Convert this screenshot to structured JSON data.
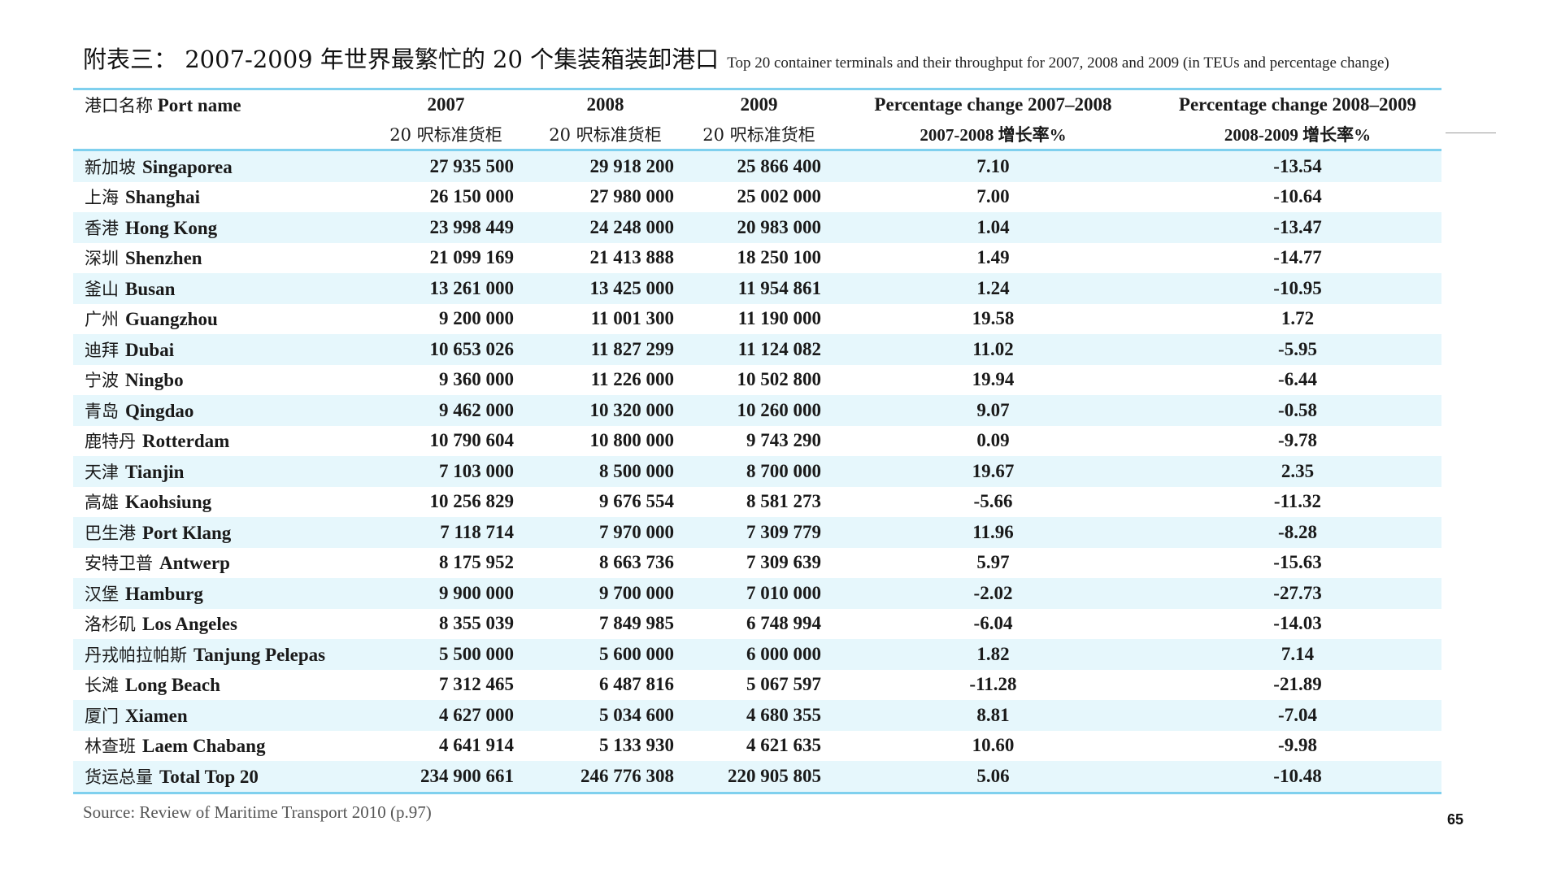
{
  "title": {
    "zh": "附表三：  2007-2009 年世界最繁忙的 20 个集装箱装卸港口",
    "en": "Top 20 container terminals and their throughput for 2007, 2008 and 2009 (in TEUs and percentage change)"
  },
  "table": {
    "headers": {
      "name_zh": "港口名称",
      "name_en": "Port name",
      "y2007": "2007",
      "y2008": "2008",
      "y2009": "2009",
      "pct1_en": "Percentage change 2007–2008",
      "pct2_en": "Percentage change 2008–2009",
      "unit_zh": "20 呎标准货柜",
      "pct1_zh": "2007-2008 增长率%",
      "pct2_zh": "2008-2009 增长率%"
    },
    "rows": [
      {
        "zh": "新加坡",
        "en": "Singaporea",
        "v2007": "27 935 500",
        "v2008": "29 918 200",
        "v2009": "25 866 400",
        "p1": "7.10",
        "p2": "-13.54"
      },
      {
        "zh": "上海",
        "en": "Shanghai",
        "v2007": "26 150 000",
        "v2008": "27 980 000",
        "v2009": "25 002 000",
        "p1": "7.00",
        "p2": "-10.64"
      },
      {
        "zh": "香港",
        "en": "Hong Kong",
        "v2007": "23 998 449",
        "v2008": "24 248 000",
        "v2009": "20 983 000",
        "p1": "1.04",
        "p2": "-13.47"
      },
      {
        "zh": "深圳",
        "en": "Shenzhen",
        "v2007": "21 099 169",
        "v2008": "21 413 888",
        "v2009": "18 250 100",
        "p1": "1.49",
        "p2": "-14.77"
      },
      {
        "zh": "釜山",
        "en": "Busan",
        "v2007": "13 261 000",
        "v2008": "13 425 000",
        "v2009": "11 954 861",
        "p1": "1.24",
        "p2": "-10.95"
      },
      {
        "zh": "广州",
        "en": "Guangzhou",
        "v2007": "9 200 000",
        "v2008": "11 001 300",
        "v2009": "11 190 000",
        "p1": "19.58",
        "p2": "1.72"
      },
      {
        "zh": "迪拜",
        "en": "Dubai",
        "v2007": "10 653 026",
        "v2008": "11 827 299",
        "v2009": "11 124 082",
        "p1": "11.02",
        "p2": "-5.95"
      },
      {
        "zh": "宁波",
        "en": "Ningbo",
        "v2007": "9 360 000",
        "v2008": "11 226 000",
        "v2009": "10 502 800",
        "p1": "19.94",
        "p2": "-6.44"
      },
      {
        "zh": "青岛",
        "en": "Qingdao",
        "v2007": "9 462 000",
        "v2008": "10 320 000",
        "v2009": "10 260 000",
        "p1": "9.07",
        "p2": "-0.58"
      },
      {
        "zh": "鹿特丹",
        "en": "Rotterdam",
        "v2007": "10 790 604",
        "v2008": "10 800 000",
        "v2009": "9 743 290",
        "p1": "0.09",
        "p2": "-9.78"
      },
      {
        "zh": "天津",
        "en": "Tianjin",
        "v2007": "7 103 000",
        "v2008": "8 500 000",
        "v2009": "8 700 000",
        "p1": "19.67",
        "p2": "2.35"
      },
      {
        "zh": "高雄",
        "en": "Kaohsiung",
        "v2007": "10 256 829",
        "v2008": "9 676 554",
        "v2009": "8 581 273",
        "p1": "-5.66",
        "p2": "-11.32"
      },
      {
        "zh": "巴生港",
        "en": "Port Klang",
        "v2007": "7 118 714",
        "v2008": "7 970 000",
        "v2009": "7 309 779",
        "p1": "11.96",
        "p2": "-8.28"
      },
      {
        "zh": "安特卫普",
        "en": "Antwerp",
        "v2007": "8 175 952",
        "v2008": "8 663 736",
        "v2009": "7 309 639",
        "p1": "5.97",
        "p2": "-15.63"
      },
      {
        "zh": "汉堡",
        "en": "Hamburg",
        "v2007": "9 900 000",
        "v2008": "9 700 000",
        "v2009": "7 010 000",
        "p1": "-2.02",
        "p2": "-27.73"
      },
      {
        "zh": "洛杉矶",
        "en": "Los Angeles",
        "v2007": "8 355 039",
        "v2008": "7 849 985",
        "v2009": "6 748 994",
        "p1": "-6.04",
        "p2": "-14.03"
      },
      {
        "zh": "丹戎帕拉帕斯",
        "en": "Tanjung Pelepas",
        "v2007": "5 500 000",
        "v2008": "5 600 000",
        "v2009": "6 000 000",
        "p1": "1.82",
        "p2": "7.14"
      },
      {
        "zh": "长滩",
        "en": "Long Beach",
        "v2007": "7 312 465",
        "v2008": "6 487 816",
        "v2009": "5 067 597",
        "p1": "-11.28",
        "p2": "-21.89"
      },
      {
        "zh": "厦门",
        "en": "Xiamen",
        "v2007": "4 627 000",
        "v2008": "5 034 600",
        "v2009": "4 680 355",
        "p1": "8.81",
        "p2": "-7.04"
      },
      {
        "zh": "林查班",
        "en": "Laem Chabang",
        "v2007": "4 641 914",
        "v2008": "5 133 930",
        "v2009": "4 621 635",
        "p1": "10.60",
        "p2": "-9.98"
      },
      {
        "zh": "货运总量",
        "en": "Total Top 20",
        "v2007": "234 900 661",
        "v2008": "246 776 308",
        "v2009": "220 905 805",
        "p1": "5.06",
        "p2": "-10.48"
      }
    ]
  },
  "source": "Source: Review of Maritime Transport 2010 (p.97)",
  "page_number": "65"
}
